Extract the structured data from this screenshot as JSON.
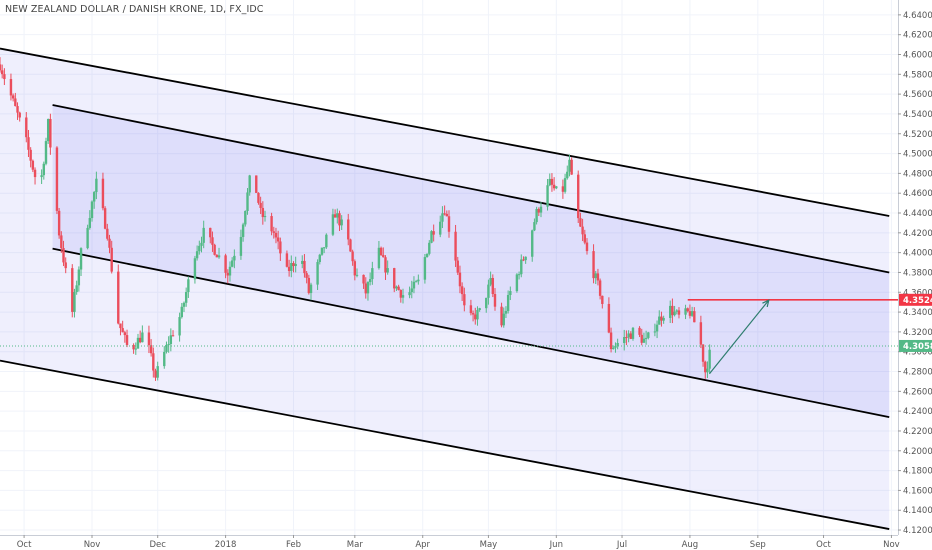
{
  "chart_data": {
    "type": "candlestick",
    "title": "NEW ZEALAND DOLLAR / DANISH KRONE, 1D, FX_IDC",
    "ylim": [
      4.115,
      4.655
    ],
    "yticks": [
      4.12,
      4.14,
      4.16,
      4.18,
      4.2,
      4.22,
      4.24,
      4.26,
      4.28,
      4.3,
      4.32,
      4.34,
      4.36,
      4.38,
      4.4,
      4.42,
      4.44,
      4.46,
      4.48,
      4.5,
      4.52,
      4.54,
      4.56,
      4.58,
      4.6,
      4.62,
      4.64
    ],
    "ytick_labels": [
      "4.1200",
      "4.1400",
      "4.1600",
      "4.1800",
      "4.2000",
      "4.2200",
      "4.2400",
      "4.2600",
      "4.2800",
      "4.3000",
      "4.3200",
      "4.3400",
      "4.3600",
      "4.3800",
      "4.4000",
      "4.4200",
      "4.4400",
      "4.4600",
      "4.4800",
      "4.5000",
      "4.5200",
      "4.5400",
      "4.5600",
      "4.5800",
      "4.6000",
      "4.6200",
      "4.6400"
    ],
    "xticks": [
      {
        "date": "2017-10-01",
        "label": "Oct"
      },
      {
        "date": "2017-11-01",
        "label": "Nov"
      },
      {
        "date": "2017-12-01",
        "label": "Dec"
      },
      {
        "date": "2018-01-01",
        "label": "2018"
      },
      {
        "date": "2018-02-01",
        "label": "Feb"
      },
      {
        "date": "2018-03-01",
        "label": "Mar"
      },
      {
        "date": "2018-04-01",
        "label": "Apr"
      },
      {
        "date": "2018-05-01",
        "label": "May"
      },
      {
        "date": "2018-06-01",
        "label": "Jun"
      },
      {
        "date": "2018-07-01",
        "label": "Jul"
      },
      {
        "date": "2018-08-01",
        "label": "Aug"
      },
      {
        "date": "2018-09-01",
        "label": "Sep"
      },
      {
        "date": "2018-10-01",
        "label": "Oct"
      },
      {
        "date": "2018-11-01",
        "label": "Nov"
      }
    ],
    "xlim": [
      "2017-09-20",
      "2018-11-04"
    ],
    "current_price": {
      "value": 4.3058,
      "label": "4.3058"
    },
    "target_level": {
      "value": 4.3524,
      "label": "4.3524",
      "from": "2018-07-31",
      "to": "2018-11-04"
    },
    "arrow": {
      "from": {
        "date": "2018-08-10",
        "value": 4.278
      },
      "to": {
        "date": "2018-09-06",
        "value": 4.352
      }
    },
    "channel_outer": {
      "upper": [
        {
          "date": "2017-09-20",
          "value": 4.606
        },
        {
          "date": "2018-10-31",
          "value": 4.437
        }
      ],
      "lower": [
        {
          "date": "2017-09-20",
          "value": 4.291
        },
        {
          "date": "2018-10-31",
          "value": 4.121
        }
      ]
    },
    "channel_inner": {
      "upper": [
        {
          "date": "2017-10-14",
          "value": 4.549
        },
        {
          "date": "2018-10-31",
          "value": 4.38
        }
      ],
      "lower": [
        {
          "date": "2017-10-14",
          "value": 4.404
        },
        {
          "date": "2018-10-31",
          "value": 4.234
        }
      ]
    },
    "waypoints": [
      {
        "date": "2017-09-20",
        "value": 4.59
      },
      {
        "date": "2017-10-01",
        "value": 4.52
      },
      {
        "date": "2017-10-08",
        "value": 4.46
      },
      {
        "date": "2017-10-12",
        "value": 4.53
      },
      {
        "date": "2017-10-17",
        "value": 4.42
      },
      {
        "date": "2017-10-23",
        "value": 4.34
      },
      {
        "date": "2017-10-27",
        "value": 4.4
      },
      {
        "date": "2017-11-03",
        "value": 4.47
      },
      {
        "date": "2017-11-08",
        "value": 4.42
      },
      {
        "date": "2017-11-13",
        "value": 4.33
      },
      {
        "date": "2017-11-18",
        "value": 4.3
      },
      {
        "date": "2017-11-25",
        "value": 4.32
      },
      {
        "date": "2017-11-30",
        "value": 4.275
      },
      {
        "date": "2017-12-06",
        "value": 4.31
      },
      {
        "date": "2017-12-12",
        "value": 4.34
      },
      {
        "date": "2017-12-18",
        "value": 4.4
      },
      {
        "date": "2017-12-22",
        "value": 4.42
      },
      {
        "date": "2017-12-28",
        "value": 4.4
      },
      {
        "date": "2018-01-02",
        "value": 4.38
      },
      {
        "date": "2018-01-08",
        "value": 4.42
      },
      {
        "date": "2018-01-13",
        "value": 4.485
      },
      {
        "date": "2018-01-17",
        "value": 4.44
      },
      {
        "date": "2018-01-23",
        "value": 4.42
      },
      {
        "date": "2018-01-29",
        "value": 4.38
      },
      {
        "date": "2018-02-04",
        "value": 4.4
      },
      {
        "date": "2018-02-08",
        "value": 4.36
      },
      {
        "date": "2018-02-14",
        "value": 4.4
      },
      {
        "date": "2018-02-20",
        "value": 4.44
      },
      {
        "date": "2018-02-25",
        "value": 4.42
      },
      {
        "date": "2018-03-01",
        "value": 4.38
      },
      {
        "date": "2018-03-06",
        "value": 4.36
      },
      {
        "date": "2018-03-12",
        "value": 4.4
      },
      {
        "date": "2018-03-18",
        "value": 4.37
      },
      {
        "date": "2018-03-24",
        "value": 4.355
      },
      {
        "date": "2018-03-30",
        "value": 4.37
      },
      {
        "date": "2018-04-05",
        "value": 4.42
      },
      {
        "date": "2018-04-11",
        "value": 4.445
      },
      {
        "date": "2018-04-16",
        "value": 4.395
      },
      {
        "date": "2018-04-21",
        "value": 4.33
      },
      {
        "date": "2018-04-27",
        "value": 4.34
      },
      {
        "date": "2018-05-02",
        "value": 4.37
      },
      {
        "date": "2018-05-06",
        "value": 4.32
      },
      {
        "date": "2018-05-11",
        "value": 4.36
      },
      {
        "date": "2018-05-18",
        "value": 4.4
      },
      {
        "date": "2018-05-23",
        "value": 4.44
      },
      {
        "date": "2018-05-29",
        "value": 4.47
      },
      {
        "date": "2018-06-03",
        "value": 4.455
      },
      {
        "date": "2018-06-07",
        "value": 4.49
      },
      {
        "date": "2018-06-10",
        "value": 4.44
      },
      {
        "date": "2018-06-15",
        "value": 4.4
      },
      {
        "date": "2018-06-21",
        "value": 4.36
      },
      {
        "date": "2018-06-26",
        "value": 4.305
      },
      {
        "date": "2018-06-30",
        "value": 4.31
      },
      {
        "date": "2018-07-06",
        "value": 4.32
      },
      {
        "date": "2018-07-12",
        "value": 4.31
      },
      {
        "date": "2018-07-17",
        "value": 4.33
      },
      {
        "date": "2018-07-22",
        "value": 4.345
      },
      {
        "date": "2018-07-27",
        "value": 4.335
      },
      {
        "date": "2018-08-01",
        "value": 4.34
      },
      {
        "date": "2018-08-05",
        "value": 4.32
      },
      {
        "date": "2018-08-08",
        "value": 4.28
      },
      {
        "date": "2018-08-11",
        "value": 4.306
      }
    ],
    "bull_color": "#53b987",
    "bear_color": "#eb4d5c"
  }
}
